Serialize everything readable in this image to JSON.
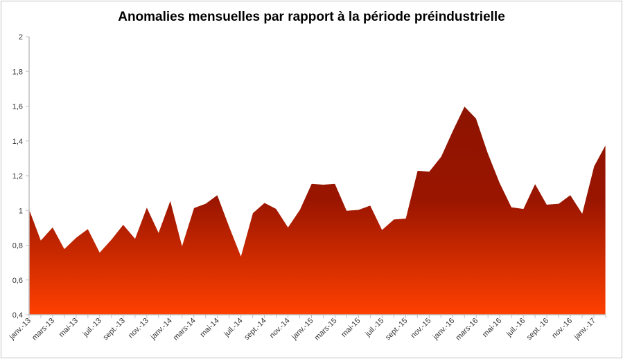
{
  "chart_data": {
    "type": "area",
    "title": "Anomalies mensuelles par rapport à la  période préindustrielle",
    "xlabel": "",
    "ylabel": "",
    "ylim": [
      0.4,
      2
    ],
    "yticks": [
      "0,4",
      "0,6",
      "0,8",
      "1",
      "1,2",
      "1,4",
      "1,6",
      "1,8",
      "2"
    ],
    "ytick_values": [
      0.4,
      0.6,
      0.8,
      1,
      1.2,
      1.4,
      1.6,
      1.8,
      2
    ],
    "xtick_labels": [
      "janv.-13",
      "mars-13",
      "mai-13",
      "juil.-13",
      "sept.-13",
      "nov.-13",
      "janv.-14",
      "mars-14",
      "mai-14",
      "juil.-14",
      "sept.-14",
      "nov.-14",
      "janv.-15",
      "mars-15",
      "mai-15",
      "juil.-15",
      "sept.-15",
      "nov.-15",
      "janv.-16",
      "mars-16",
      "mai-16",
      "juil.-16",
      "sept.-16",
      "nov.-16",
      "janv.-17"
    ],
    "grid": false,
    "legend": "none",
    "colors": {
      "top": "#8c1400",
      "bottom": "#ff4000",
      "axis": "#bfbfbf"
    },
    "series": [
      {
        "name": "Anomalies mensuelles",
        "values": [
          1.01,
          0.83,
          0.905,
          0.78,
          0.845,
          0.895,
          0.76,
          0.835,
          0.92,
          0.84,
          1.02,
          0.875,
          1.06,
          0.8,
          1.015,
          1.04,
          1.09,
          0.91,
          0.74,
          0.985,
          1.045,
          1.01,
          0.905,
          1.005,
          1.155,
          1.15,
          1.155,
          1.0,
          1.005,
          1.03,
          0.89,
          0.95,
          0.955,
          1.23,
          1.225,
          1.31,
          1.46,
          1.6,
          1.53,
          1.33,
          1.16,
          1.02,
          1.01,
          1.155,
          1.035,
          1.04,
          1.09,
          0.985,
          1.255,
          1.38
        ]
      }
    ]
  }
}
